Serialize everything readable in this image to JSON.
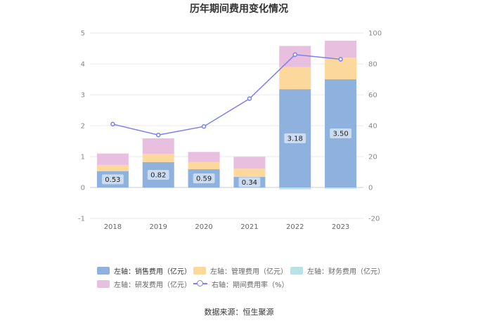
{
  "chart_data": {
    "type": "bar",
    "title": "历年期间费用变化情况",
    "categories": [
      "2018",
      "2019",
      "2020",
      "2021",
      "2022",
      "2023"
    ],
    "left_axis": {
      "ylim": [
        -1,
        5
      ],
      "ticks": [
        "-1",
        "0",
        "1",
        "2",
        "3",
        "4",
        "5"
      ]
    },
    "right_axis": {
      "ylim": [
        -20,
        100
      ],
      "ticks": [
        "-20",
        "0",
        "20",
        "40",
        "60",
        "80",
        "100"
      ]
    },
    "series": [
      {
        "name": "左轴：销售费用（亿元）",
        "type": "bar",
        "axis": "left",
        "color": "#8eb1de",
        "values": [
          0.53,
          0.82,
          0.59,
          0.34,
          3.18,
          3.5
        ],
        "labels": [
          "0.53",
          "0.82",
          "0.59",
          "0.34",
          "3.18",
          "3.50"
        ]
      },
      {
        "name": "左轴：管理费用（亿元）",
        "type": "bar",
        "axis": "left",
        "color": "#fcd89c",
        "values": [
          0.2,
          0.27,
          0.24,
          0.27,
          0.72,
          0.7
        ]
      },
      {
        "name": "左轴：财务费用（亿元）",
        "type": "bar",
        "axis": "left",
        "color": "#b7e3e6",
        "values": [
          -0.01,
          -0.02,
          -0.02,
          -0.01,
          -0.06,
          -0.04
        ]
      },
      {
        "name": "左轴：研发费用（亿元）",
        "type": "bar",
        "axis": "left",
        "color": "#e9bfdf",
        "values": [
          0.37,
          0.5,
          0.32,
          0.38,
          0.68,
          0.55
        ]
      },
      {
        "name": "右轴：期间费用率（%）",
        "type": "line",
        "axis": "right",
        "color": "#7b7ff0",
        "values": [
          41.0,
          34.0,
          39.5,
          57.5,
          86.0,
          83.0
        ]
      }
    ],
    "grid": true,
    "legend_position": "bottom"
  },
  "source": "数据来源：恒生聚源"
}
